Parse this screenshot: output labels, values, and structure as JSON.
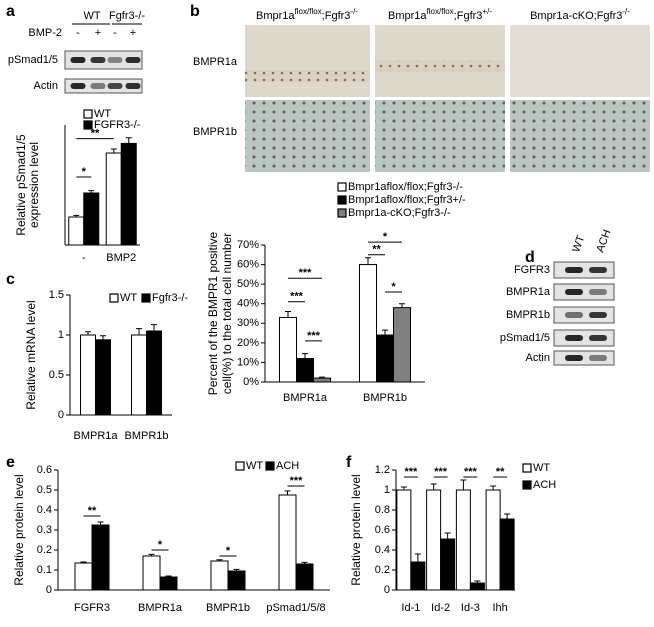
{
  "blots": [
    {
      "panel": "a",
      "columns": [
        "WT",
        "Fgfr3-/-"
      ],
      "treatment_label": "BMP-2",
      "treatments": [
        "-",
        "+",
        "-",
        "+"
      ],
      "rows": [
        "pSmad1/5",
        "Actin"
      ]
    },
    {
      "panel": "d",
      "columns": [
        "WT",
        "ACH"
      ],
      "rows": [
        "FGFR3",
        "BMPR1a",
        "BMPR1b",
        "pSmad1/5",
        "Actin"
      ]
    }
  ],
  "histology": {
    "panel": "b",
    "columns": [
      [
        "Bmpr1a",
        "flox/flox",
        ";Fgfr3",
        "-/-"
      ],
      [
        "Bmpr1a",
        "flox/flox",
        ";Fgfr3",
        "+/-"
      ],
      [
        "Bmpr1a-cKO;Fgfr3",
        "-/-"
      ]
    ],
    "rows": [
      "BMPR1a",
      "BMPR1b"
    ]
  },
  "chart_data": [
    {
      "type": "bar",
      "panel": "a",
      "ylabel": [
        "Relative pSmad1/5",
        "expression level"
      ],
      "categories": [
        "-",
        "BMP2"
      ],
      "series": [
        {
          "name": "WT",
          "color": "#ffffff",
          "values": [
            0.35,
            1.15
          ],
          "errors": [
            0.02,
            0.05
          ]
        },
        {
          "name": "FGFR3-/-",
          "color": "#000000",
          "values": [
            0.65,
            1.27
          ],
          "errors": [
            0.03,
            0.07
          ]
        }
      ],
      "ylim": [
        0,
        1.5
      ],
      "significance": [
        "*",
        "**"
      ]
    },
    {
      "type": "bar",
      "panel": "b",
      "ylabel": [
        "Percent of the BMPR1 positive",
        "cell(%) to  the total cell number"
      ],
      "categories": [
        "BMPR1a",
        "BMPR1b"
      ],
      "series": [
        {
          "name": "Bmpr1aflox/flox;Fgfr3-/-",
          "color": "#ffffff",
          "values": [
            33,
            60
          ],
          "errors": [
            3,
            3.5
          ]
        },
        {
          "name": "Bmpr1aflox/flox;Fgfr3+/-",
          "color": "#000000",
          "values": [
            12,
            24
          ],
          "errors": [
            2.5,
            2.5
          ]
        },
        {
          "name": "Bmpr1a-cKO;Fgfr3-/-",
          "color": "#808080",
          "values": [
            2,
            38
          ],
          "errors": [
            0.5,
            2
          ]
        }
      ],
      "ylim": [
        0,
        70
      ],
      "yticks": [
        {
          "value": 0,
          "label": "0%"
        },
        {
          "value": 10,
          "label": "10%"
        },
        {
          "value": 20,
          "label": "20%"
        },
        {
          "value": 30,
          "label": "30%"
        },
        {
          "value": 40,
          "label": "40%"
        },
        {
          "value": 50,
          "label": "50%"
        },
        {
          "value": 60,
          "label": "60%"
        },
        {
          "value": 70,
          "label": "70%"
        }
      ],
      "significance": [
        "***",
        "***",
        "***",
        "*",
        "**",
        "*"
      ]
    },
    {
      "type": "bar",
      "panel": "c",
      "ylabel": "Relative mRNA level",
      "categories": [
        "BMPR1a",
        "BMPR1b"
      ],
      "series": [
        {
          "name": "WT",
          "color": "#ffffff",
          "values": [
            1.0,
            1.0
          ],
          "errors": [
            0.04,
            0.08
          ]
        },
        {
          "name": "Fgfr3-/-",
          "color": "#000000",
          "values": [
            0.94,
            1.05
          ],
          "errors": [
            0.05,
            0.08
          ]
        }
      ],
      "ylim": [
        0,
        1.5
      ],
      "yticks": [
        0,
        0.5,
        1,
        1.5
      ]
    },
    {
      "type": "bar",
      "panel": "e",
      "ylabel": "Relative protein level",
      "categories": [
        "FGFR3",
        "BMPR1a",
        "BMPR1b",
        "pSmad1/5/8"
      ],
      "series": [
        {
          "name": "WT",
          "color": "#ffffff",
          "values": [
            0.135,
            0.17,
            0.145,
            0.475
          ],
          "errors": [
            0.005,
            0.008,
            0.006,
            0.02
          ]
        },
        {
          "name": "ACH",
          "color": "#000000",
          "values": [
            0.325,
            0.065,
            0.095,
            0.13
          ],
          "errors": [
            0.015,
            0.005,
            0.008,
            0.008
          ]
        }
      ],
      "ylim": [
        0,
        0.6
      ],
      "yticks": [
        0,
        0.1,
        0.2,
        0.3,
        0.4,
        0.5,
        0.6
      ],
      "significance": [
        "**",
        "*",
        "*",
        "***"
      ]
    },
    {
      "type": "bar",
      "panel": "f",
      "ylabel": "Relative protein level",
      "categories": [
        "Id-1",
        "Id-2",
        "Id-3",
        "Ihh"
      ],
      "series": [
        {
          "name": "WT",
          "color": "#ffffff",
          "values": [
            1,
            1,
            1,
            1
          ],
          "errors": [
            0.03,
            0.06,
            0.1,
            0.04
          ]
        },
        {
          "name": "ACH",
          "color": "#000000",
          "values": [
            0.28,
            0.51,
            0.07,
            0.71
          ],
          "errors": [
            0.08,
            0.06,
            0.02,
            0.05
          ]
        }
      ],
      "ylim": [
        0,
        1.2
      ],
      "yticks": [
        0,
        0.2,
        0.4,
        0.6,
        0.8,
        1,
        1.2
      ],
      "significance": [
        "***",
        "***",
        "***",
        "**"
      ]
    }
  ]
}
